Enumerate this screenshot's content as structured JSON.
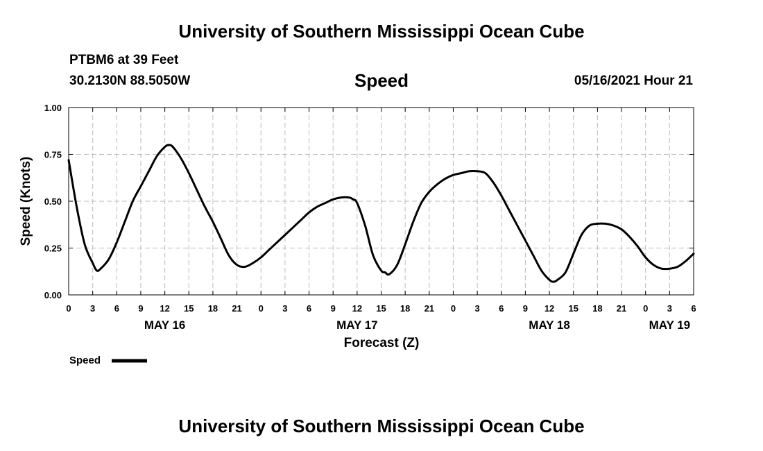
{
  "header": {
    "title": "University of Southern Mississippi Ocean Cube",
    "station": "PTBM6 at 39 Feet",
    "coordinates": "30.2130N  88.5050W",
    "variable": "Speed",
    "datetime": "05/16/2021 Hour 21"
  },
  "footer": {
    "title": "University of Southern Mississippi Ocean Cube"
  },
  "colors": {
    "line": "#000000",
    "grid": "#bbbbbb",
    "axis": "#000000"
  },
  "chart_data": {
    "type": "line",
    "title": "Speed",
    "xlabel": "Forecast (Z)",
    "ylabel": "Speed (Knots)",
    "ylim": [
      0,
      1
    ],
    "xlim": [
      0,
      78
    ],
    "x_unit": "hours from 05/16/2021 00Z",
    "y_ticks": [
      0,
      0.25,
      0.5,
      0.75,
      1.0
    ],
    "y_tick_labels": [
      "0.00",
      "0.25",
      "0.50",
      "0.75",
      "1.00"
    ],
    "x_ticks": [
      0,
      3,
      6,
      9,
      12,
      15,
      18,
      21,
      24,
      27,
      30,
      33,
      36,
      39,
      42,
      45,
      48,
      51,
      54,
      57,
      60,
      63,
      66,
      69,
      72,
      75,
      78
    ],
    "x_tick_labels": [
      "0",
      "3",
      "6",
      "9",
      "12",
      "15",
      "18",
      "21",
      "0",
      "3",
      "6",
      "9",
      "12",
      "15",
      "18",
      "21",
      "0",
      "3",
      "6",
      "9",
      "12",
      "15",
      "18",
      "21",
      "0",
      "3",
      "6"
    ],
    "day_labels": [
      {
        "hour": 12,
        "label": "MAY 16"
      },
      {
        "hour": 36,
        "label": "MAY 17"
      },
      {
        "hour": 60,
        "label": "MAY 18"
      },
      {
        "hour": 75,
        "label": "MAY 19"
      }
    ],
    "grid": true,
    "legend": {
      "label": "Speed",
      "placement": "bottom-left"
    },
    "series": [
      {
        "name": "Speed",
        "x": [
          0,
          1,
          2,
          3,
          3.5,
          4,
          5,
          6,
          7,
          8,
          9,
          10,
          11,
          12,
          12.5,
          13,
          14,
          15,
          16,
          17,
          18,
          19,
          20,
          21,
          22,
          23,
          24,
          25,
          26,
          27,
          28,
          29,
          30,
          31,
          32,
          33,
          34,
          35,
          35.5,
          36,
          37,
          38,
          39,
          39.5,
          40,
          41,
          42,
          43,
          44,
          45,
          46,
          47,
          48,
          49,
          50,
          51,
          52,
          53,
          54,
          55,
          56,
          57,
          58,
          59,
          60,
          60.5,
          61,
          62,
          63,
          64,
          65,
          66,
          67,
          68,
          69,
          70,
          71,
          72,
          73,
          74,
          75,
          76,
          77,
          78
        ],
        "values": [
          0.72,
          0.47,
          0.27,
          0.17,
          0.13,
          0.14,
          0.19,
          0.28,
          0.39,
          0.5,
          0.58,
          0.66,
          0.74,
          0.79,
          0.8,
          0.79,
          0.73,
          0.65,
          0.56,
          0.47,
          0.39,
          0.3,
          0.21,
          0.16,
          0.15,
          0.17,
          0.2,
          0.24,
          0.28,
          0.32,
          0.36,
          0.4,
          0.44,
          0.47,
          0.49,
          0.51,
          0.52,
          0.52,
          0.51,
          0.49,
          0.37,
          0.21,
          0.13,
          0.12,
          0.11,
          0.16,
          0.27,
          0.39,
          0.49,
          0.55,
          0.59,
          0.62,
          0.64,
          0.65,
          0.66,
          0.66,
          0.65,
          0.6,
          0.53,
          0.45,
          0.37,
          0.29,
          0.21,
          0.13,
          0.08,
          0.07,
          0.08,
          0.12,
          0.22,
          0.32,
          0.37,
          0.38,
          0.38,
          0.37,
          0.35,
          0.31,
          0.26,
          0.2,
          0.16,
          0.14,
          0.14,
          0.15,
          0.18,
          0.22
        ]
      }
    ]
  }
}
